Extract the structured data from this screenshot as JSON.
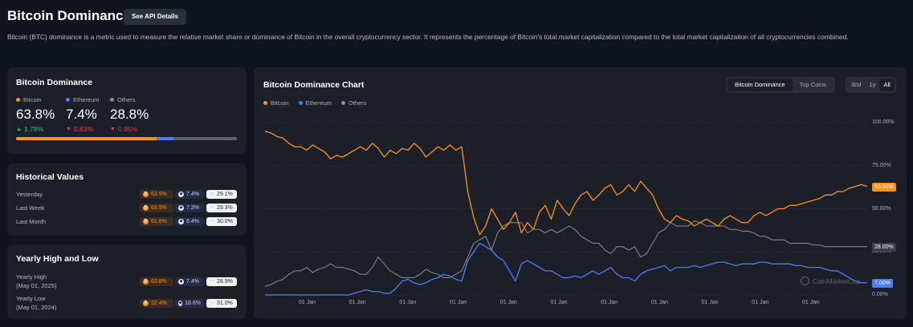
{
  "header": {
    "title": "Bitcoin Dominance",
    "api_button": "See API Details",
    "description": "Bitcoin (BTC) dominance is a metric used to measure the relative market share or dominance of Bitcoin in the overall cryptocurrency sector. It represents the percentage of Bitcoin's total market capitalization compared to the total market capitalization of all cryptocurrencies combined."
  },
  "colors": {
    "bitcoin": "#f7931a",
    "ethereum": "#4e7cf6",
    "others": "#8a8d96",
    "up": "#16c784",
    "down": "#ea3943"
  },
  "dominance": {
    "title": "Bitcoin Dominance",
    "items": [
      {
        "name": "Bitcoin",
        "value": "63.8%",
        "change": "1.78%",
        "direction": "up"
      },
      {
        "name": "Ethereum",
        "value": "7.4%",
        "change": "0.83%",
        "direction": "down"
      },
      {
        "name": "Others",
        "value": "28.8%",
        "change": "0.95%",
        "direction": "down"
      }
    ],
    "bar_fractions": [
      0.638,
      0.074,
      0.288
    ]
  },
  "historical": {
    "title": "Historical Values",
    "rows": [
      {
        "label": "Yesterday",
        "btc": "63.5%",
        "eth": "7.4%",
        "others": "29.1%"
      },
      {
        "label": "Last Week",
        "btc": "63.5%",
        "eth": "7.3%",
        "others": "29.3%"
      },
      {
        "label": "Last Month",
        "btc": "61.6%",
        "eth": "8.4%",
        "others": "30.0%"
      }
    ]
  },
  "yearly": {
    "title": "Yearly High and Low",
    "rows": [
      {
        "label": "Yearly High",
        "date": "(May 01, 2025)",
        "btc": "63.8%",
        "eth": "7.4%",
        "others": "28.9%"
      },
      {
        "label": "Yearly Low",
        "date": "(May 01, 2024)",
        "btc": "52.4%",
        "eth": "16.6%",
        "others": "31.0%"
      }
    ]
  },
  "chart": {
    "title": "Bitcoin Dominance Chart",
    "tabs": [
      "Bitcoin Dominance",
      "Top Coins"
    ],
    "ranges": [
      "30d",
      "1y",
      "All"
    ],
    "watermark": "CoinMarketCap"
  },
  "chart_data": {
    "type": "line",
    "ylim": [
      0,
      100
    ],
    "y_ticks": [
      "100.00%",
      "75.00%",
      "50.00%",
      "25.00%",
      "0.00%"
    ],
    "x_ticks": [
      "01 Jan",
      "01 Jan",
      "01 Jan",
      "01 Jan",
      "01 Jan",
      "01 Jan",
      "01 Jan",
      "01 Jan",
      "01 Jan",
      "01 Jan",
      "01 Jan"
    ],
    "legend": [
      "Bitcoin",
      "Ethereum",
      "Others"
    ],
    "last_values": [
      "63.00%",
      "28.00%",
      "7.00%"
    ],
    "series": [
      {
        "name": "Bitcoin",
        "values": [
          95,
          94,
          92,
          91,
          88,
          86,
          86,
          84,
          87,
          85,
          83,
          79,
          81,
          80,
          82,
          84,
          86,
          84,
          88,
          85,
          80,
          84,
          82,
          85,
          84,
          88,
          85,
          80,
          83,
          86,
          84,
          87,
          84,
          86,
          60,
          45,
          35,
          40,
          50,
          44,
          38,
          42,
          48,
          36,
          42,
          38,
          48,
          52,
          44,
          55,
          50,
          46,
          53,
          58,
          60,
          55,
          58,
          62,
          64,
          58,
          60,
          64,
          60,
          66,
          62,
          58,
          50,
          44,
          42,
          46,
          44,
          43,
          40,
          42,
          44,
          42,
          40,
          44,
          46,
          44,
          42,
          42,
          46,
          48,
          46,
          48,
          50,
          50,
          52,
          52,
          53,
          54,
          55,
          56,
          58,
          58,
          60,
          60,
          62,
          63,
          64,
          63
        ]
      },
      {
        "name": "Ethereum",
        "values": [
          0,
          0,
          0,
          0,
          0,
          0,
          0,
          0,
          0,
          0,
          0,
          0,
          0,
          0,
          0,
          1,
          2,
          3,
          2,
          2,
          1,
          1,
          4,
          8,
          9,
          7,
          6,
          7,
          9,
          10,
          12,
          11,
          9,
          8,
          20,
          25,
          30,
          28,
          26,
          22,
          20,
          14,
          8,
          18,
          20,
          18,
          16,
          14,
          14,
          12,
          10,
          10,
          11,
          10,
          12,
          14,
          12,
          14,
          16,
          12,
          10,
          10,
          8,
          12,
          14,
          15,
          16,
          17,
          14,
          16,
          16,
          16,
          17,
          16,
          17,
          18,
          19,
          19,
          18,
          17,
          18,
          18,
          18,
          19,
          19,
          18,
          18,
          18,
          18,
          17,
          17,
          16,
          16,
          16,
          15,
          14,
          14,
          12,
          10,
          8,
          7,
          7
        ]
      },
      {
        "name": "Others",
        "values": [
          5,
          6,
          8,
          9,
          12,
          14,
          14,
          16,
          13,
          15,
          16,
          18,
          16,
          16,
          15,
          14,
          12,
          12,
          16,
          22,
          18,
          14,
          12,
          10,
          10,
          10,
          12,
          15,
          13,
          12,
          10,
          10,
          12,
          14,
          22,
          30,
          32,
          34,
          26,
          36,
          40,
          42,
          42,
          42,
          36,
          38,
          38,
          36,
          38,
          36,
          38,
          40,
          38,
          34,
          32,
          30,
          30,
          26,
          24,
          28,
          28,
          26,
          28,
          22,
          24,
          30,
          36,
          38,
          42,
          40,
          40,
          40,
          43,
          42,
          40,
          40,
          40,
          40,
          38,
          38,
          37,
          37,
          36,
          34,
          34,
          32,
          32,
          32,
          30,
          30,
          30,
          30,
          29,
          29,
          28,
          28,
          28,
          28,
          28,
          28,
          28,
          28
        ]
      }
    ]
  }
}
